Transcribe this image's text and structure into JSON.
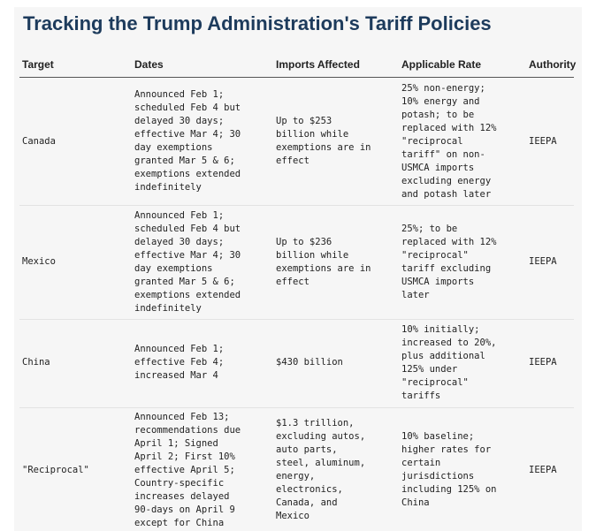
{
  "title": "Tracking the Trump Administration's Tariff Policies",
  "columns": {
    "target": "Target",
    "dates": "Dates",
    "imports": "Imports Affected",
    "rate": "Applicable Rate",
    "authority": "Authority"
  },
  "rows": [
    {
      "target": "Canada",
      "dates": "Announced Feb 1;\nscheduled Feb 4 but\ndelayed 30 days;\neffective Mar 4; 30\nday exemptions\ngranted Mar 5 & 6;\nexemptions extended\nindefinitely",
      "imports": "Up to $253\nbillion while\nexemptions are in\neffect",
      "rate": "25% non-energy;\n10% energy and\npotash; to be\nreplaced with 12%\n\"reciprocal\ntariff\" on non-\nUSMCA imports\nexcluding energy\nand potash later",
      "authority": "IEEPA"
    },
    {
      "target": "Mexico",
      "dates": "Announced Feb 1;\nscheduled Feb 4 but\ndelayed 30 days;\neffective Mar 4; 30\nday exemptions\ngranted Mar 5 & 6;\nexemptions extended\nindefinitely",
      "imports": "Up to $236\nbillion while\nexemptions are in\neffect",
      "rate": "25%; to be\nreplaced with 12%\n\"reciprocal\"\ntariff excluding\nUSMCA imports\nlater",
      "authority": "IEEPA"
    },
    {
      "target": "China",
      "dates": "Announced Feb 1;\neffective Feb 4;\nincreased Mar 4",
      "imports": "$430 billion",
      "rate": "10% initially;\nincreased to 20%,\nplus additional\n125% under\n\"reciprocal\"\ntariffs",
      "authority": "IEEPA"
    },
    {
      "target": "\"Reciprocal\"",
      "dates": "Announced Feb 13;\nrecommendations due\nApril 1; Signed\nApril 2; First 10%\neffective April 5;\nCountry-specific\nincreases delayed\n90-days on April 9\nexcept for China",
      "imports": "$1.3 trillion,\nexcluding autos,\nauto parts,\nsteel, aluminum,\nenergy,\nelectronics,\nCanada, and\nMexico",
      "rate": "10% baseline;\nhigher rates for\ncertain\njurisdictions\nincluding 125% on\nChina",
      "authority": "IEEPA"
    }
  ]
}
